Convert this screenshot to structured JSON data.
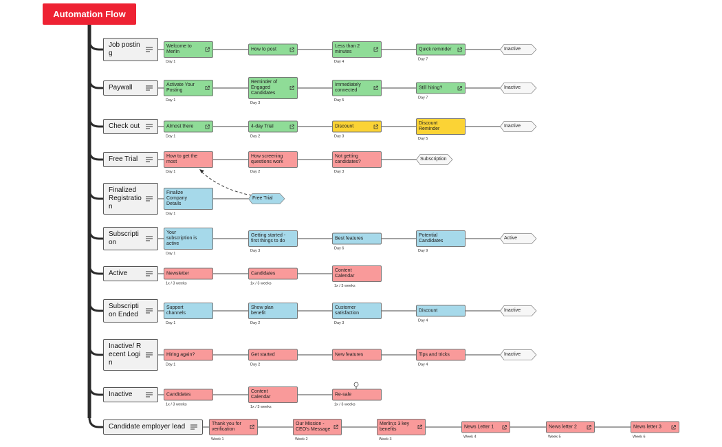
{
  "title": "Automation Flow",
  "rows": [
    {
      "label": "Job posting",
      "steps": [
        {
          "label": "Welcome to Merlin",
          "note": "Day 1",
          "color": "#8fdc97",
          "link": true
        },
        {
          "label": "How to post",
          "color": "#8fdc97",
          "link": true
        },
        {
          "label": "Less than 2 minutes",
          "note": "Day 4",
          "color": "#8fdc97",
          "link": true
        },
        {
          "label": "Quick reminder",
          "note": "Day 7",
          "color": "#8fdc97",
          "link": true
        }
      ],
      "end": {
        "label": "Inactive",
        "color": "#f7f7f7"
      }
    },
    {
      "label": "Paywall",
      "steps": [
        {
          "label": "Activate Your Posting",
          "note": "Day 1",
          "color": "#8fdc97",
          "link": true
        },
        {
          "label": "Reminder of Engaged Candidates",
          "note": "Day 3",
          "color": "#8fdc97",
          "link": true
        },
        {
          "label": "Immediately connected",
          "note": "Day 5",
          "color": "#8fdc97",
          "link": true
        },
        {
          "label": "Still hiring?",
          "note": "Day 7",
          "color": "#8fdc97",
          "link": true
        }
      ],
      "end": {
        "label": "Inactive",
        "color": "#f7f7f7"
      }
    },
    {
      "label": "Check out",
      "steps": [
        {
          "label": "Almost there",
          "note": "Day 1",
          "color": "#8fdc97",
          "link": true
        },
        {
          "label": "4-day Trial",
          "note": "Day 2",
          "color": "#8fdc97",
          "link": true
        },
        {
          "label": "Discount",
          "note": "Day 3",
          "color": "#fbd335",
          "link": true
        },
        {
          "label": "Discount Reminder",
          "note": "Day 5",
          "color": "#fbd335",
          "link": false
        }
      ],
      "end": {
        "label": "Inactive",
        "color": "#f7f7f7"
      }
    },
    {
      "label": "Free Trial",
      "steps": [
        {
          "label": "How to get the most",
          "note": "Day 1",
          "color": "#f99a9a",
          "link": false
        },
        {
          "label": "How screening questions work",
          "note": "Day 2",
          "color": "#f99a9a",
          "link": false
        },
        {
          "label": "Not getting candidates?",
          "note": "Day 3",
          "color": "#f99a9a",
          "link": false
        }
      ],
      "end": {
        "label": "Subscription",
        "color": "#f7f7f7"
      }
    },
    {
      "label": "Finalized Registration",
      "steps": [
        {
          "label": "Finalize Company Details",
          "note": "Day 1",
          "color": "#a6d9ea",
          "link": false
        }
      ],
      "end": {
        "label": "Free Trial",
        "color": "#a6d9ea"
      }
    },
    {
      "label": "Subscription",
      "steps": [
        {
          "label": "Your subscription is active",
          "note": "Day 1",
          "color": "#a6d9ea",
          "link": false
        },
        {
          "label": "Getting started - first things to do",
          "note": "Day 3",
          "color": "#a6d9ea",
          "link": false
        },
        {
          "label": "Best features",
          "note": "Day 6",
          "color": "#a6d9ea",
          "link": false
        },
        {
          "label": "Potential Candidates",
          "note": "Day 9",
          "color": "#a6d9ea",
          "link": false
        }
      ],
      "end": {
        "label": "Active",
        "color": "#f7f7f7"
      }
    },
    {
      "label": "Active",
      "steps": [
        {
          "label": "Newsletter",
          "note": "1x / 3 weeks",
          "color": "#f99a9a",
          "link": false
        },
        {
          "label": "Candidates",
          "note": "1x / 3 weeks",
          "color": "#f99a9a",
          "link": false
        },
        {
          "label": "Content Calendar",
          "note": "1x / 3 weeks",
          "color": "#f99a9a",
          "link": false
        }
      ]
    },
    {
      "label": "Subscription Ended",
      "steps": [
        {
          "label": "Support channels",
          "note": "Day 1",
          "color": "#a6d9ea",
          "link": false
        },
        {
          "label": "Show plan benefit",
          "note": "Day 2",
          "color": "#a6d9ea",
          "link": false
        },
        {
          "label": "Customer satisfaction",
          "note": "Day 3",
          "color": "#a6d9ea",
          "link": false
        },
        {
          "label": "Discount",
          "note": "Day 4",
          "color": "#a6d9ea",
          "link": false
        }
      ],
      "end": {
        "label": "Inactive",
        "color": "#f7f7f7"
      }
    },
    {
      "label": "Inactive/ Recent Login",
      "steps": [
        {
          "label": "Hiring again?",
          "note": "Day 1",
          "color": "#f99a9a",
          "link": false
        },
        {
          "label": "Get started",
          "note": "Day 2",
          "color": "#f99a9a",
          "link": false
        },
        {
          "label": "New features",
          "color": "#f99a9a",
          "link": false
        },
        {
          "label": "Tips and tricks",
          "note": "Day 4",
          "color": "#f99a9a",
          "link": false
        }
      ],
      "end": {
        "label": "Inactive",
        "color": "#f7f7f7"
      }
    },
    {
      "label": "Inactive",
      "steps": [
        {
          "label": "Candidates",
          "note": "1x / 3 weeks",
          "color": "#f99a9a",
          "link": false
        },
        {
          "label": "Content Calendar",
          "note": "1x / 3 weeks",
          "color": "#f99a9a",
          "link": false
        },
        {
          "label": "Re-sale",
          "note": "1x / 3 weeks",
          "color": "#f99a9a",
          "link": false
        }
      ]
    },
    {
      "label": "Candidate employer lead",
      "steps": [
        {
          "label": "Thank you for verification",
          "note": "Week 1",
          "color": "#f99a9a",
          "link": true
        },
        {
          "label": "Our Mission - CEO's Message",
          "note": "Week 2",
          "color": "#f99a9a",
          "link": true
        },
        {
          "label": "Merlin;s 3 key benefits",
          "note": "Week 3",
          "color": "#f99a9a",
          "link": true
        },
        {
          "label": "News Letter 1",
          "note": "Week 4",
          "color": "#f99a9a",
          "link": true
        },
        {
          "label": "News letter 2",
          "note": "Week 5",
          "color": "#f99a9a",
          "link": true
        },
        {
          "label": "News letter 3",
          "note": "Week 6",
          "color": "#f99a9a",
          "link": true
        }
      ]
    }
  ]
}
